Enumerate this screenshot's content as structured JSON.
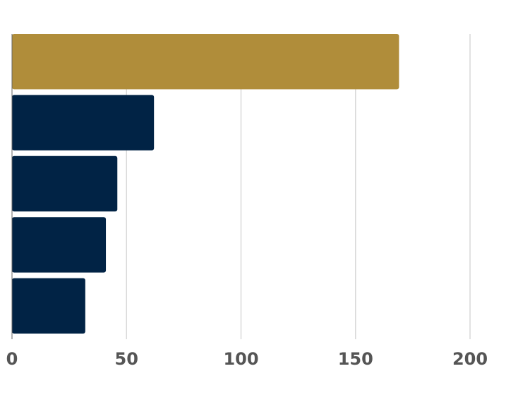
{
  "chart_data": {
    "type": "bar",
    "orientation": "horizontal",
    "categories": [
      "",
      "",
      "",
      "",
      ""
    ],
    "values": [
      169,
      62,
      46,
      41,
      32
    ],
    "highlight_index": 0,
    "xlim": [
      0,
      200
    ],
    "x_ticks": [
      0,
      50,
      100,
      150,
      200
    ],
    "x_tick_labels": [
      "0",
      "50",
      "100",
      "150",
      "200"
    ],
    "grid": true,
    "title": "",
    "xlabel": "",
    "ylabel": ""
  },
  "colors": {
    "highlight": "#B08D3A",
    "bar": "#012345",
    "grid": "#d9d9d9",
    "tick_text": "#555555"
  }
}
